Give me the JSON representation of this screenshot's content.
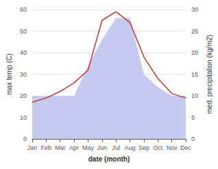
{
  "chart_data": {
    "type": "line",
    "xlabel": "date (month)",
    "ylabel": "max temp (C)",
    "y2label": "med. precipitation (kg/m2)",
    "categories": [
      "Jan",
      "Feb",
      "Mar",
      "Apr",
      "May",
      "Jun",
      "Jul",
      "Aug",
      "Sep",
      "Oct",
      "Nov",
      "Dec"
    ],
    "series": [
      {
        "type": "area",
        "color": "#c5caf0",
        "axis": "y2",
        "values": [
          10,
          10,
          10,
          10,
          17,
          23,
          28,
          28,
          15,
          12,
          10,
          10
        ]
      },
      {
        "type": "line",
        "color": "#c0392b",
        "values": [
          17,
          19,
          22,
          26,
          32,
          55,
          59,
          54,
          38,
          28,
          21,
          19
        ]
      }
    ],
    "ylim": [
      0,
      60
    ],
    "yticks": [
      0,
      10,
      20,
      30,
      40,
      50,
      60
    ],
    "y2lim": [
      0,
      30
    ],
    "y2ticks": [
      0,
      5,
      10,
      15,
      20,
      25,
      30
    ],
    "grid": true
  }
}
